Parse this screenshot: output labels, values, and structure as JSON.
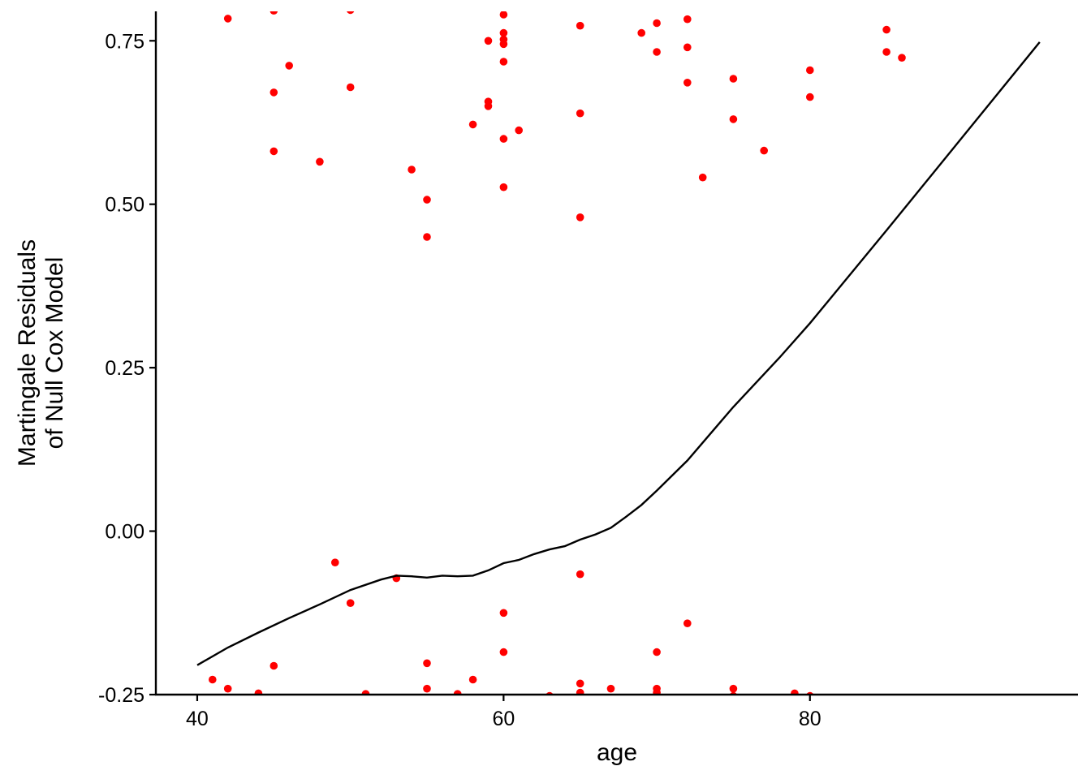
{
  "chart_data": {
    "type": "scatter",
    "title": "",
    "xlabel": "age",
    "ylabel_lines": [
      "Martingale Residuals",
      "of Null Cox Model"
    ],
    "xlim": [
      37.3,
      97.5
    ],
    "ylim": [
      -0.25,
      0.795
    ],
    "x_ticks": [
      40,
      60,
      80
    ],
    "x_tick_labels": [
      "40",
      "60",
      "80"
    ],
    "y_ticks": [
      -0.25,
      0.0,
      0.25,
      0.5,
      0.75
    ],
    "y_tick_labels": [
      "-0.25",
      "0.00",
      "0.25",
      "0.50",
      "0.75"
    ],
    "grid": false,
    "legend": "none",
    "colors": {
      "points": "#ff0000",
      "line": "#000000",
      "axis": "#000000"
    },
    "series": [
      {
        "kind": "points",
        "x": [
          42,
          45,
          50,
          60,
          60,
          60,
          70,
          72,
          85,
          59,
          60,
          60,
          65,
          69,
          70,
          72,
          85,
          86,
          46,
          60,
          75,
          80,
          45,
          50,
          59,
          65,
          72,
          80,
          59,
          61,
          45,
          58,
          75,
          48,
          54,
          73,
          55,
          60,
          65,
          55,
          77,
          49,
          53,
          65,
          50,
          72,
          60,
          45,
          55,
          70,
          41,
          42,
          44,
          51,
          55,
          57,
          58,
          60,
          63,
          65,
          65,
          67,
          70,
          70,
          75,
          75,
          79,
          80
        ],
        "y": [
          0.784,
          0.796,
          0.797,
          0.79,
          0.762,
          0.752,
          0.777,
          0.783,
          0.767,
          0.75,
          0.745,
          0.718,
          0.773,
          0.762,
          0.733,
          0.74,
          0.733,
          0.724,
          0.712,
          0.6,
          0.692,
          0.705,
          0.671,
          0.679,
          0.657,
          0.639,
          0.686,
          0.664,
          0.65,
          0.613,
          0.581,
          0.622,
          0.63,
          0.565,
          0.553,
          0.541,
          0.507,
          0.526,
          0.48,
          0.45,
          0.582,
          -0.048,
          -0.072,
          -0.066,
          -0.11,
          -0.141,
          -0.125,
          -0.206,
          -0.202,
          -0.185,
          -0.227,
          -0.241,
          -0.248,
          -0.249,
          -0.241,
          -0.249,
          -0.227,
          -0.185,
          -0.252,
          -0.233,
          -0.247,
          -0.241,
          -0.241,
          -0.247,
          -0.241,
          -0.252,
          -0.248,
          -0.252
        ]
      },
      {
        "kind": "smooth-line",
        "x": [
          40,
          42,
          44,
          46,
          48,
          50,
          52,
          53,
          54,
          55,
          56,
          57,
          58,
          59,
          60,
          61,
          62,
          63,
          64,
          65,
          66,
          67,
          68,
          69,
          70,
          72,
          75,
          78,
          80,
          85,
          90,
          95
        ],
        "y": [
          -0.205,
          -0.178,
          -0.155,
          -0.133,
          -0.112,
          -0.09,
          -0.074,
          -0.068,
          -0.069,
          -0.071,
          -0.068,
          -0.069,
          -0.068,
          -0.06,
          -0.049,
          -0.044,
          -0.035,
          -0.028,
          -0.023,
          -0.013,
          -0.005,
          0.005,
          0.022,
          0.04,
          0.062,
          0.108,
          0.19,
          0.265,
          0.318,
          0.46,
          0.604,
          0.748
        ]
      }
    ]
  }
}
